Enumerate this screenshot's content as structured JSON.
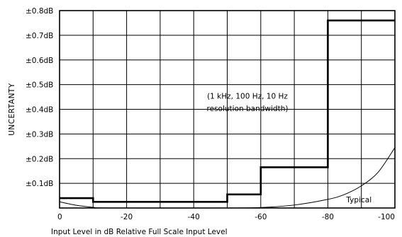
{
  "chart_data": {
    "type": "line",
    "xlabel": "Input Level in dB Relative Full Scale Input Level",
    "ylabel": "UNCERTANTY",
    "xlim": [
      0,
      -100
    ],
    "ylim": [
      0,
      0.8
    ],
    "x_ticks": [
      {
        "value": 0,
        "label": "0"
      },
      {
        "value": -20,
        "label": "-20"
      },
      {
        "value": -40,
        "label": "-40"
      },
      {
        "value": -60,
        "label": "-60"
      },
      {
        "value": -80,
        "label": "-80"
      },
      {
        "value": -100,
        "label": "-100"
      }
    ],
    "y_ticks": [
      {
        "value": 0.1,
        "label": "±0.1dB"
      },
      {
        "value": 0.2,
        "label": "±0.2dB"
      },
      {
        "value": 0.3,
        "label": "±0.3dB"
      },
      {
        "value": 0.4,
        "label": "±0.4dB"
      },
      {
        "value": 0.5,
        "label": "±0.5dB"
      },
      {
        "value": 0.6,
        "label": "±0.6dB"
      },
      {
        "value": 0.7,
        "label": "±0.7dB"
      },
      {
        "value": 0.8,
        "label": "±0.8dB"
      }
    ],
    "grid": true,
    "annotation_lines": [
      "(1 kHz, 100 Hz, 10 Hz",
      "resolution bandwidth)"
    ],
    "series": [
      {
        "style": "step",
        "segments": [
          {
            "x_from": 0,
            "x_to": -10,
            "y": 0.04
          },
          {
            "x_from": -10,
            "x_to": -50,
            "y": 0.025
          },
          {
            "x_from": -50,
            "x_to": -60,
            "y": 0.055
          },
          {
            "x_from": -60,
            "x_to": -80,
            "y": 0.165
          },
          {
            "x_from": -80,
            "x_to": -100,
            "y": 0.76
          }
        ]
      },
      {
        "name": "Typical",
        "style": "curve",
        "points": [
          {
            "x": 0,
            "y": 0.025
          },
          {
            "x": -5,
            "y": 0.011
          },
          {
            "x": -10,
            "y": 0.003
          },
          {
            "x": -15,
            "y": 0.0
          },
          {
            "x": -50,
            "y": 0.0
          },
          {
            "x": -60,
            "y": 0.002
          },
          {
            "x": -70,
            "y": 0.012
          },
          {
            "x": -80,
            "y": 0.035
          },
          {
            "x": -85,
            "y": 0.055
          },
          {
            "x": -90,
            "y": 0.09
          },
          {
            "x": -95,
            "y": 0.145
          },
          {
            "x": -100,
            "y": 0.245
          }
        ]
      }
    ]
  }
}
